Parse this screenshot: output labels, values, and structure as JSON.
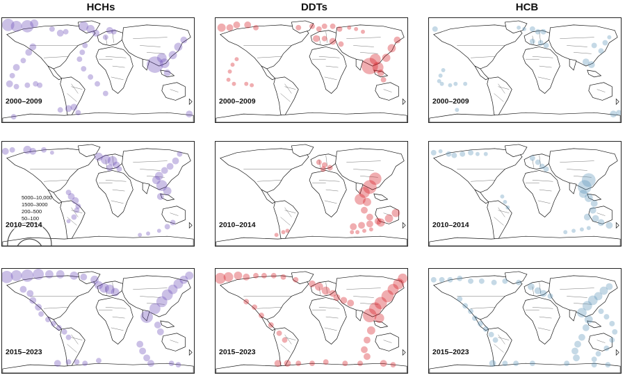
{
  "columns": [
    {
      "title": "HCHs",
      "color": "#6a4bb8"
    },
    {
      "title": "DDTs",
      "color": "#d4141c"
    },
    {
      "title": "HCB",
      "color": "#5a93b8"
    }
  ],
  "periods": [
    "2000–2009",
    "2010–2014",
    "2015–2023"
  ],
  "legend": {
    "labels": [
      "5000–10,000",
      "1500–3000",
      "200–500",
      "50–100"
    ]
  }
}
